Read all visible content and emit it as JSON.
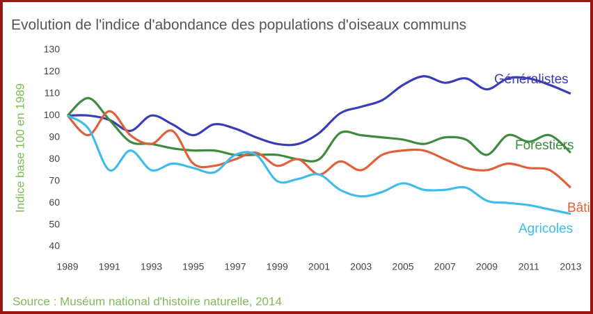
{
  "chart_data": {
    "type": "line",
    "title": "Evolution de l'indice d'abondance des populations d'oiseaux communs",
    "y_label": "Indice base 100 en 1989",
    "source": "Source : Muséum national d'histoire naturelle, 2014",
    "x": [
      1989,
      1990,
      1991,
      1992,
      1993,
      1994,
      1995,
      1996,
      1997,
      1998,
      1999,
      2000,
      2001,
      2002,
      2003,
      2004,
      2005,
      2006,
      2007,
      2008,
      2009,
      2010,
      2011,
      2012,
      2013
    ],
    "xlim": [
      1989,
      2013
    ],
    "xticks": [
      1989,
      1991,
      1993,
      1995,
      1997,
      1999,
      2001,
      2003,
      2005,
      2007,
      2009,
      2011,
      2013
    ],
    "ylim": [
      40,
      130
    ],
    "yticks": [
      40,
      50,
      60,
      70,
      80,
      90,
      100,
      110,
      120,
      130
    ],
    "series": [
      {
        "name": "Généralistes",
        "color": "#3a3db8",
        "values": [
          100,
          100,
          98,
          93,
          100,
          96,
          91,
          96,
          94,
          90,
          87,
          87,
          92,
          101,
          104,
          107,
          114,
          118,
          115,
          117,
          112,
          117,
          117,
          114,
          110
        ]
      },
      {
        "name": "Forestiers",
        "color": "#3d8c3d",
        "values": [
          100,
          108,
          98,
          88,
          87,
          85,
          84,
          84,
          82,
          82,
          82,
          80,
          80,
          92,
          91,
          90,
          89,
          87,
          90,
          89,
          82,
          91,
          88,
          91,
          83
        ]
      },
      {
        "name": "Bâtis",
        "color": "#e0603a",
        "values": [
          100,
          91,
          102,
          91,
          87,
          93,
          78,
          77,
          80,
          83,
          77,
          80,
          73,
          79,
          75,
          82,
          84,
          84,
          80,
          76,
          75,
          78,
          76,
          75,
          67
        ]
      },
      {
        "name": "Agricoles",
        "color": "#3fbde8",
        "values": [
          100,
          94,
          75,
          84,
          75,
          78,
          76,
          74,
          82,
          82,
          70,
          71,
          73,
          66,
          63,
          65,
          69,
          66,
          66,
          67,
          61,
          60,
          59,
          57,
          55
        ]
      }
    ]
  }
}
